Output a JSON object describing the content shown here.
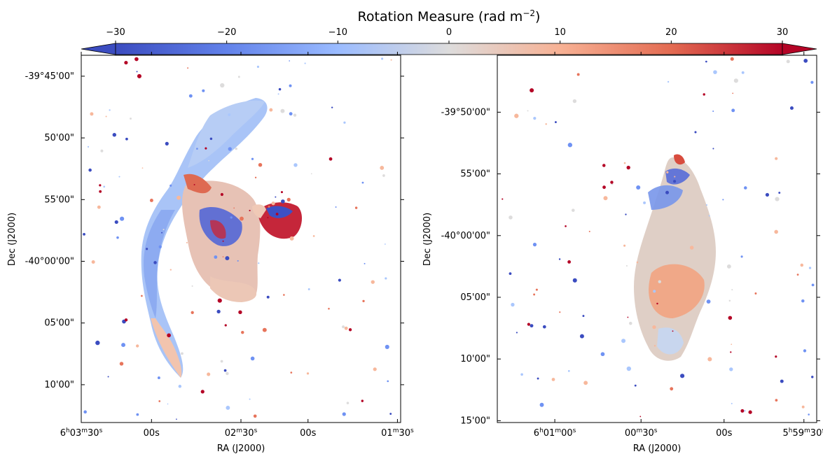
{
  "chart_data": {
    "type": "heatmap",
    "colorbar": {
      "title": "Rotation Measure (rad m",
      "title_exponent": "−2",
      "title_close": ")",
      "colormap": "coolwarm",
      "range": [
        -30,
        30
      ],
      "extend": "both",
      "ticks": [
        "−30",
        "−20",
        "−10",
        "0",
        "10",
        "20",
        "30"
      ],
      "tick_values": [
        -30,
        -20,
        -10,
        0,
        10,
        20,
        30
      ],
      "colors": [
        "#3b4cc0",
        "#6f92f3",
        "#aac7fd",
        "#dddcdc",
        "#f7b89c",
        "#e7745b",
        "#b40426"
      ]
    },
    "panels": [
      {
        "xlabel": "RA (J2000)",
        "ylabel": "Dec (J2000)",
        "xticks": [
          {
            "value": 0.0,
            "h": "6",
            "m": "03",
            "s": "30",
            "sup": true
          },
          {
            "value": 0.22,
            "text": "00s"
          },
          {
            "value": 0.5,
            "h": "",
            "m": "02",
            "s": "30",
            "sup": true
          },
          {
            "value": 0.71,
            "text": "00s"
          },
          {
            "value": 0.99,
            "h": "",
            "m": "01",
            "s": "30",
            "sup": true
          }
        ],
        "yticks": [
          {
            "value": 0.057,
            "text": "-39°45'00\""
          },
          {
            "value": 0.225,
            "text": "50'00\""
          },
          {
            "value": 0.393,
            "text": "55'00\""
          },
          {
            "value": 0.561,
            "text": "-40°00'00\""
          },
          {
            "value": 0.729,
            "text": "05'00\""
          },
          {
            "value": 0.897,
            "text": "10'00\""
          }
        ]
      },
      {
        "xlabel": "RA (J2000)",
        "ylabel": "Dec (J2000)",
        "xticks": [
          {
            "value": 0.18,
            "h": "6",
            "m": "01",
            "s": "00",
            "sup": true
          },
          {
            "value": 0.45,
            "h": "",
            "m": "00",
            "s": "30",
            "sup": true
          },
          {
            "value": 0.71,
            "text": "00s"
          },
          {
            "value": 0.96,
            "h": "5",
            "m": "59",
            "s": "30",
            "sup": true
          }
        ],
        "yticks": [
          {
            "value": 0.155,
            "text": "-39°50'00\""
          },
          {
            "value": 0.323,
            "text": "55'00\""
          },
          {
            "value": 0.491,
            "text": "-40°00'00\""
          },
          {
            "value": 0.659,
            "text": "05'00\""
          },
          {
            "value": 0.827,
            "text": "10'00\""
          },
          {
            "value": 0.995,
            "text": "15'00\""
          }
        ]
      }
    ]
  }
}
